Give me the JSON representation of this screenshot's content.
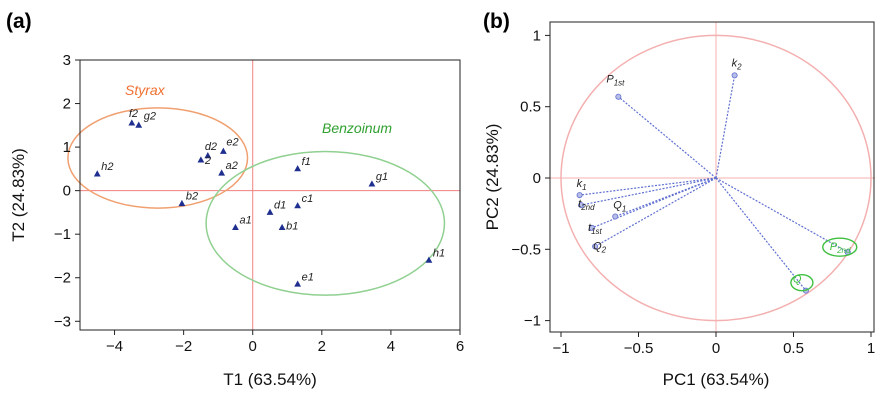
{
  "chart_data": [
    {
      "type": "scatter",
      "panel": "(a)",
      "xlabel": "T1 (63.54%)",
      "ylabel": "T2 (24.83%)",
      "xlim": [
        -5,
        6
      ],
      "ylim": [
        -3.2,
        3
      ],
      "xticks": [
        -4,
        -2,
        0,
        2,
        4,
        6
      ],
      "yticks": [
        3,
        2,
        1,
        0,
        -1,
        -2,
        -3
      ],
      "marker_color": "#1f2f8f",
      "reference_line_color": "#f08080",
      "points": [
        {
          "label": "f2",
          "x": -3.5,
          "y": 1.55
        },
        {
          "label": "g2",
          "x": -3.3,
          "y": 1.5
        },
        {
          "label": "d2",
          "x": -1.3,
          "y": 0.8
        },
        {
          "label": "e2",
          "x": -0.85,
          "y": 0.9
        },
        {
          "label": "2",
          "x": -1.5,
          "y": 0.7
        },
        {
          "label": "a2",
          "x": -0.9,
          "y": 0.4
        },
        {
          "label": "h2",
          "x": -4.5,
          "y": 0.38
        },
        {
          "label": "b2",
          "x": -2.05,
          "y": -0.3
        },
        {
          "label": "f1",
          "x": 1.3,
          "y": 0.5
        },
        {
          "label": "g1",
          "x": 3.45,
          "y": 0.15
        },
        {
          "label": "c1",
          "x": 1.3,
          "y": -0.35
        },
        {
          "label": "d1",
          "x": 0.5,
          "y": -0.5
        },
        {
          "label": "b1",
          "x": 0.85,
          "y": -0.85
        },
        {
          "label": "a1",
          "x": -0.5,
          "y": -0.85
        },
        {
          "label": "h1",
          "x": 5.1,
          "y": -1.6
        },
        {
          "label": "e1",
          "x": 1.3,
          "y": -2.15
        }
      ],
      "groups": [
        {
          "name": "Styrax",
          "color": "#f0a070",
          "text_color": "#f07030",
          "cx": -2.75,
          "cy": 0.75,
          "rx": 2.6,
          "ry": 1.15
        },
        {
          "name": "Benzoinum",
          "color": "#90d090",
          "text_color": "#30a030",
          "cx": 2.1,
          "cy": -0.75,
          "rx": 3.45,
          "ry": 1.65
        }
      ]
    },
    {
      "type": "scatter",
      "panel": "(b)",
      "xlabel": "PC1 (63.54%)",
      "ylabel": "PC2 (24.83%)",
      "xlim": [
        -1.1,
        1.1
      ],
      "ylim": [
        -1.1,
        1.1
      ],
      "xticks": [
        -1.0,
        -0.5,
        0.0,
        0.5,
        1.0
      ],
      "yticks": [
        1.0,
        0.5,
        0.0,
        -0.5,
        -1.0
      ],
      "unit_circle": true,
      "circle_color": "#f4b0b0",
      "vector_color": "#6070d0",
      "group_color": "#40c040",
      "vectors": [
        {
          "label": "P",
          "sub": "1st",
          "x": -0.63,
          "y": 0.57
        },
        {
          "label": "k",
          "sub": "2",
          "x": 0.12,
          "y": 0.72
        },
        {
          "label": "k",
          "sub": "1",
          "x": -0.88,
          "y": -0.12
        },
        {
          "label": "t",
          "sub": "2nd",
          "x": -0.87,
          "y": -0.19
        },
        {
          "label": "t",
          "sub": "1st",
          "x": -0.8,
          "y": -0.35
        },
        {
          "label": "Q",
          "sub": "1",
          "x": -0.65,
          "y": -0.27
        },
        {
          "label": "Q",
          "sub": "2",
          "x": -0.78,
          "y": -0.48
        },
        {
          "label": "P",
          "sub": "2nd",
          "x": 0.85,
          "y": -0.52
        },
        {
          "label": "Q",
          "sub": "",
          "x": 0.58,
          "y": -0.79
        }
      ]
    }
  ]
}
